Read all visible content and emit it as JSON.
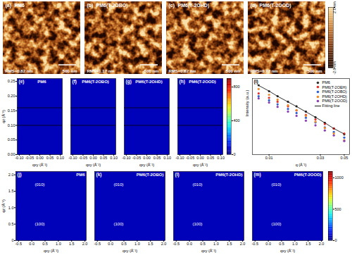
{
  "chart_data": [
    {
      "type": "heatmap",
      "panel": "(a)",
      "title": "PM6",
      "annotation": "RMS=0.82 nm",
      "scale_bar": "500 nm",
      "tick_labels": false
    },
    {
      "type": "heatmap",
      "panel": "(b)",
      "title": "PM6(T-2OBO)",
      "annotation": "RMS=1.17 nm",
      "scale_bar": "500 nm",
      "tick_labels": false
    },
    {
      "type": "heatmap",
      "panel": "(c)",
      "title": "PM6(T-2OHD)",
      "annotation": "RMS=0.82 nm",
      "scale_bar": "500 nm",
      "tick_labels": false
    },
    {
      "type": "heatmap",
      "panel": "(d)",
      "title": "PM6(T-2OOD)",
      "annotation": "RMS=0.77 nm",
      "scale_bar": "500 nm",
      "tick_labels": false
    },
    {
      "type": "colorbar",
      "range": [
        -2,
        2
      ],
      "ticks": [
        {
          "value": -2,
          "label": "-2.0 nm"
        },
        {
          "value": 2,
          "label": "2.0 nm"
        }
      ],
      "colors": [
        "#1e0800",
        "#5c2406",
        "#a8541a",
        "#dc9440",
        "#f8e0a8"
      ]
    },
    {
      "type": "heatmap",
      "panel": "(e)",
      "title": "PM6",
      "xlabel": "qxy (Å⁻¹)",
      "ylabel": "qz (Å⁻¹)",
      "xlim": [
        -0.11,
        0.11
      ],
      "ylim": [
        0,
        0.26
      ],
      "xticks": [
        {
          "value": -0.1,
          "label": "-0.10"
        },
        -0.05,
        {
          "value": 0,
          "label": "0.00"
        },
        0.05,
        {
          "value": 0.1,
          "label": "0.10"
        }
      ],
      "yticks": [
        {
          "value": 0,
          "label": "0.00"
        },
        0.05,
        {
          "value": 0.1,
          "label": "0.10"
        },
        0.15,
        {
          "value": 0.2,
          "label": "0.20"
        },
        0.25
      ],
      "cut_lines_qz": [
        0.1,
        0.16
      ]
    },
    {
      "type": "heatmap",
      "panel": "(f)",
      "title": "PM6(T-2OBO)",
      "xlabel": "qxy (Å⁻¹)",
      "xlim": [
        -0.11,
        0.11
      ],
      "ylim": [
        0,
        0.26
      ],
      "xticks": [
        {
          "value": -0.1,
          "label": "-0.10"
        },
        -0.05,
        {
          "value": 0,
          "label": "0.00"
        },
        0.05,
        {
          "value": 0.1,
          "label": "0.10"
        }
      ],
      "tick_labels": "x",
      "cut_lines_qz": [
        0.1,
        0.16
      ]
    },
    {
      "type": "heatmap",
      "panel": "(g)",
      "title": "PM6(T-2OHD)",
      "xlabel": "qxy (Å⁻¹)",
      "xlim": [
        -0.11,
        0.11
      ],
      "ylim": [
        0,
        0.26
      ],
      "xticks": [
        {
          "value": -0.1,
          "label": "-0.10"
        },
        -0.05,
        {
          "value": 0,
          "label": "0.00"
        },
        0.05,
        {
          "value": 0.1,
          "label": "0.10"
        }
      ],
      "tick_labels": "x",
      "cut_lines_qz": [
        0.1,
        0.16
      ]
    },
    {
      "type": "heatmap",
      "panel": "(h)",
      "title": "PM6(T-2OOD)",
      "xlabel": "qxy (Å⁻¹)",
      "xlim": [
        -0.11,
        0.11
      ],
      "ylim": [
        0,
        0.26
      ],
      "xticks": [
        {
          "value": -0.1,
          "label": "-0.10"
        },
        -0.05,
        {
          "value": 0,
          "label": "0.00"
        },
        0.05,
        {
          "value": 0.1,
          "label": "0.10"
        }
      ],
      "tick_labels": "x",
      "cut_lines_qz": [
        0.1,
        0.16
      ]
    },
    {
      "type": "colorbar",
      "range": [
        0,
        900
      ],
      "ticks": [
        0,
        400,
        800
      ],
      "colors": [
        "#00007f",
        "#0000ff",
        "#007fff",
        "#00ffff",
        "#7fff7f",
        "#ffff00",
        "#ff7f00",
        "#ff0000",
        "#7f0000"
      ]
    },
    {
      "type": "scatter",
      "panel": "(i)",
      "xlabel": "q (Å⁻¹)",
      "ylabel": "Intensity (a.u.)",
      "log": true,
      "tick_labels": "x",
      "legend": "upper right",
      "marker": "circle",
      "xlim": [
        0.007,
        0.056
      ],
      "ylim": [
        3,
        1000
      ],
      "xticks": [
        0.01,
        0.03,
        0.05
      ],
      "x": [
        0.008,
        0.01,
        0.012,
        0.015,
        0.018,
        0.022,
        0.027,
        0.033,
        0.04,
        0.05
      ],
      "series": [
        {
          "name": "PM6",
          "color": "#333333",
          "values": [
            600,
            380,
            260,
            170,
            120,
            80,
            52,
            34,
            22,
            14
          ]
        },
        {
          "name": "PM6(T-2OEH)",
          "color": "#e8312a",
          "values": [
            320,
            230,
            170,
            120,
            88,
            62,
            44,
            31,
            22,
            15
          ]
        },
        {
          "name": "PM6(T-2OBO)",
          "color": "#2f5fd0",
          "values": [
            260,
            190,
            140,
            98,
            72,
            50,
            35,
            24,
            17,
            11
          ]
        },
        {
          "name": "PM6(T-2OHD)",
          "color": "#f08a24",
          "values": [
            450,
            290,
            200,
            130,
            90,
            58,
            37,
            23,
            15,
            9
          ]
        },
        {
          "name": "PM6(T-2OOD)",
          "color": "#8a3fb5",
          "values": [
            220,
            160,
            115,
            80,
            58,
            40,
            28,
            19,
            13,
            8.5
          ]
        },
        {
          "name": "Fitting line",
          "type": "line",
          "color": "#000000",
          "values": [
            590,
            385,
            258,
            168,
            118,
            79,
            52,
            34,
            22,
            14.5
          ]
        }
      ]
    },
    {
      "type": "heatmap",
      "panel": "(j)",
      "title": "PM6",
      "xlabel": "qxy (Å⁻¹)",
      "ylabel": "qz (Å⁻¹)",
      "xlim": [
        -0.6,
        2.05
      ],
      "ylim": [
        0,
        2.1
      ],
      "xticks": [
        -0.5,
        {
          "value": 0,
          "label": "0.0"
        },
        0.5,
        {
          "value": 1,
          "label": "1.0"
        },
        1.5,
        {
          "value": 2,
          "label": "2.0"
        }
      ],
      "yticks": [
        0,
        0.5,
        {
          "value": 1,
          "label": "1.0"
        },
        1.5,
        {
          "value": 2,
          "label": "2.0"
        }
      ],
      "annotations": [
        {
          "text": "(010)",
          "x": 0.3,
          "y": 1.7
        },
        {
          "text": "(100)",
          "x": 0.3,
          "y": 0.5
        }
      ]
    },
    {
      "type": "heatmap",
      "panel": "(k)",
      "title": "PM6(T-2OBO)",
      "xlabel": "qxy (Å⁻¹)",
      "xlim": [
        -0.6,
        2.05
      ],
      "ylim": [
        0,
        2.1
      ],
      "xticks": [
        -0.5,
        {
          "value": 0,
          "label": "0.0"
        },
        0.5,
        {
          "value": 1,
          "label": "1.0"
        },
        1.5,
        {
          "value": 2,
          "label": "2.0"
        }
      ],
      "tick_labels": "x",
      "annotations": [
        {
          "text": "(010)",
          "x": 0.3,
          "y": 1.7
        },
        {
          "text": "(100)",
          "x": 0.3,
          "y": 0.5
        }
      ]
    },
    {
      "type": "heatmap",
      "panel": "(l)",
      "title": "PM6(T-2OHD)",
      "xlabel": "qxy (Å⁻¹)",
      "xlim": [
        -0.6,
        2.05
      ],
      "ylim": [
        0,
        2.1
      ],
      "xticks": [
        -0.5,
        {
          "value": 0,
          "label": "0.0"
        },
        0.5,
        {
          "value": 1,
          "label": "1.0"
        },
        1.5,
        {
          "value": 2,
          "label": "2.0"
        }
      ],
      "tick_labels": "x",
      "annotations": [
        {
          "text": "(010)",
          "x": 0.3,
          "y": 1.7
        },
        {
          "text": "(100)",
          "x": 0.3,
          "y": 0.5
        }
      ]
    },
    {
      "type": "heatmap",
      "panel": "(m)",
      "title": "PM6(T-2OOD)",
      "xlabel": "qxy (Å⁻¹)",
      "xlim": [
        -0.6,
        2.05
      ],
      "ylim": [
        0,
        2.1
      ],
      "xticks": [
        -0.5,
        {
          "value": 0,
          "label": "0.0"
        },
        0.5,
        {
          "value": 1,
          "label": "1.0"
        },
        1.5,
        {
          "value": 2,
          "label": "2.0"
        }
      ],
      "tick_labels": "x",
      "annotations": [
        {
          "text": "(010)",
          "x": 0.3,
          "y": 1.7
        },
        {
          "text": "(100)",
          "x": 0.3,
          "y": 0.5
        }
      ]
    },
    {
      "type": "colorbar",
      "range": [
        0,
        1100
      ],
      "ticks": [
        0,
        500,
        1000
      ],
      "colors": [
        "#00007f",
        "#0000ff",
        "#007fff",
        "#00ffff",
        "#7fff7f",
        "#ffff00",
        "#ff7f00",
        "#ff0000",
        "#7f0000"
      ]
    }
  ]
}
